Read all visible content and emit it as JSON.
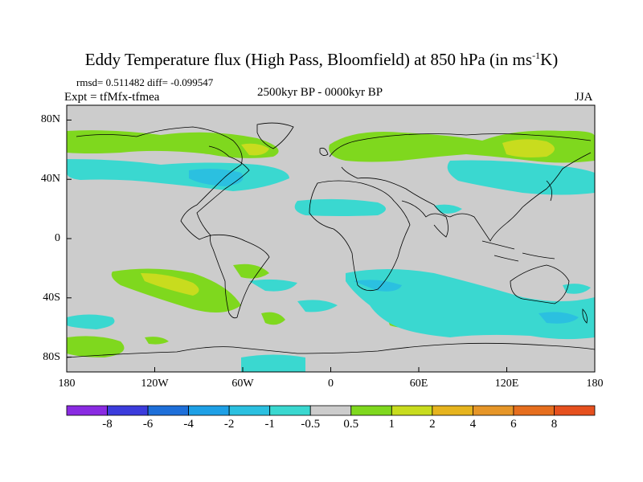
{
  "title": {
    "main": "Eddy Temperature flux (High Pass, Bloomfield) at 850 hPa (in ms",
    "sup": "-1",
    "end": "K)"
  },
  "stats": "rmsd= 0.511482 diff= -0.099547",
  "experiment": "Expt = tfMfx-tfmea",
  "period": "2500kyr BP - 0000kyr BP",
  "season": "JJA",
  "x_axis": {
    "ticks": [
      {
        "lon": -180,
        "label": "180"
      },
      {
        "lon": -120,
        "label": "120W"
      },
      {
        "lon": -60,
        "label": "60W"
      },
      {
        "lon": 0,
        "label": "0"
      },
      {
        "lon": 60,
        "label": "60E"
      },
      {
        "lon": 120,
        "label": "120E"
      },
      {
        "lon": 180,
        "label": "180"
      }
    ]
  },
  "y_axis": {
    "ticks": [
      {
        "lat": 80,
        "label": "80N"
      },
      {
        "lat": 40,
        "label": "40N"
      },
      {
        "lat": 0,
        "label": "0"
      },
      {
        "lat": -40,
        "label": "40S"
      },
      {
        "lat": -80,
        "label": "80S"
      }
    ]
  },
  "colorbar": {
    "colors": [
      "#8a2be2",
      "#3c3cdc",
      "#1e6fd9",
      "#1ea0e6",
      "#2bc0e0",
      "#3ad8d0",
      "#cccccc",
      "#7fd81e",
      "#c8dc1e",
      "#e6b41e",
      "#e69628",
      "#e66e1e",
      "#e6501e"
    ],
    "labels": [
      "-8",
      "-6",
      "-4",
      "-2",
      "-1",
      "-0.5",
      "0.5",
      "1",
      "2",
      "4",
      "6",
      "8"
    ]
  },
  "palette": {
    "background": "#cccccc",
    "cyan": "#3ad8d0",
    "lightblue": "#2bc0e0",
    "green": "#7fd81e",
    "yellow": "#c8dc1e"
  }
}
